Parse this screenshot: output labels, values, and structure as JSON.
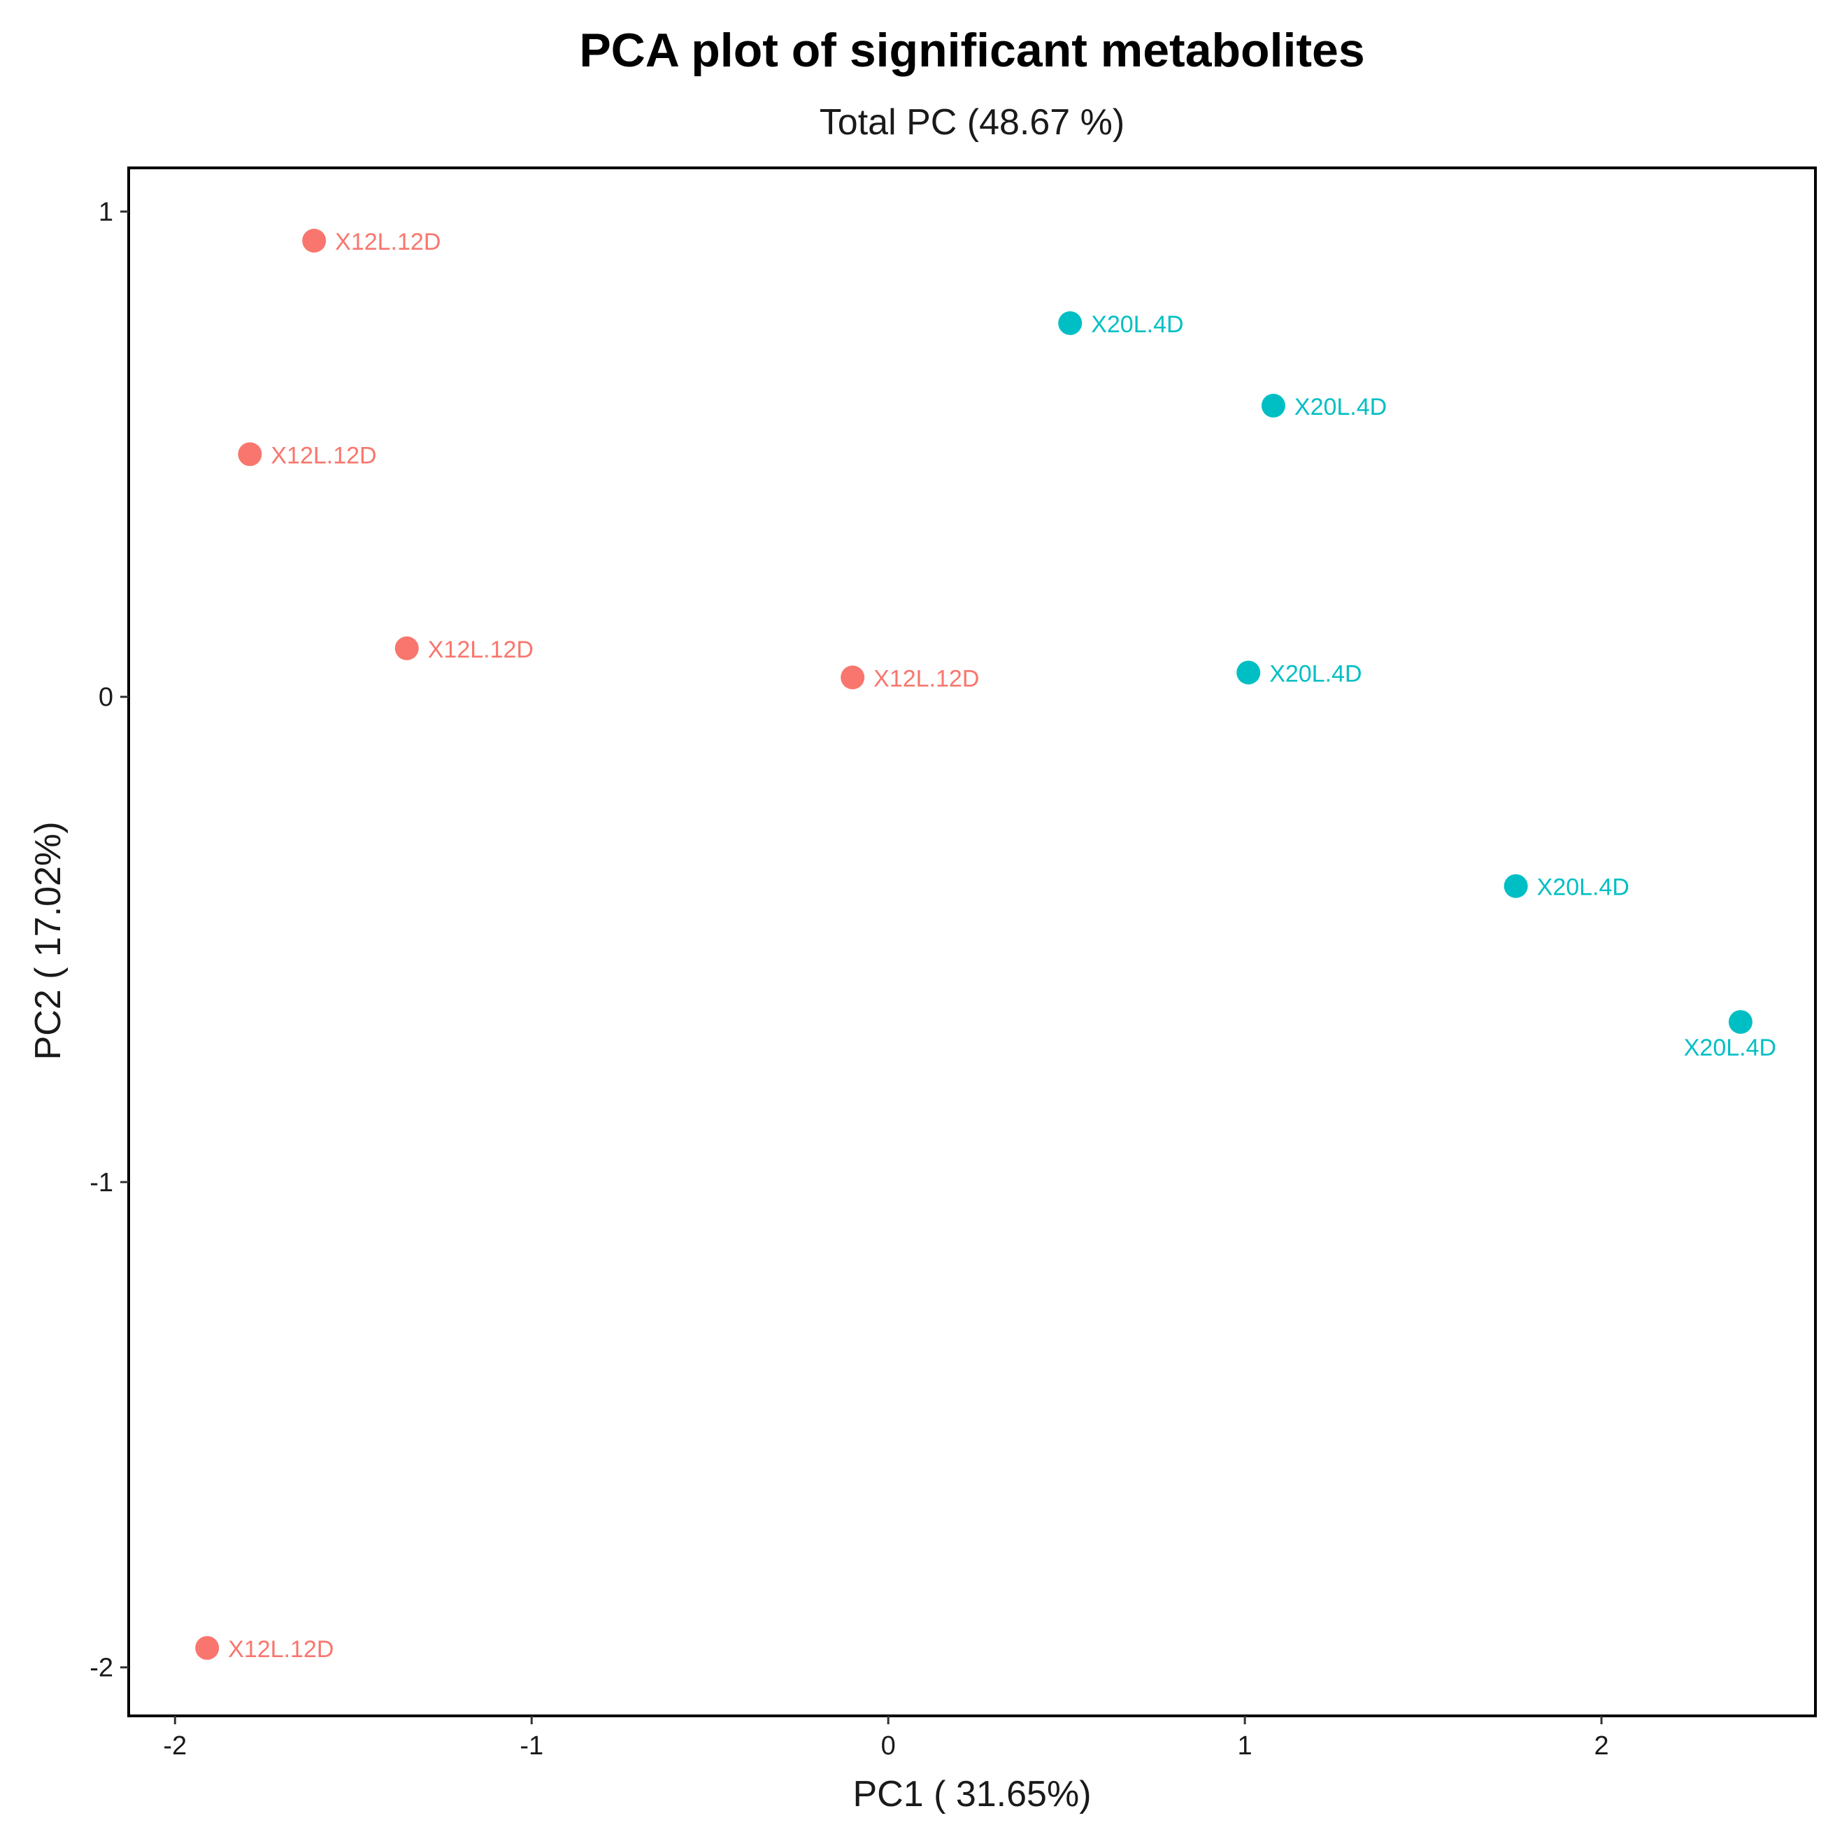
{
  "chart_data": {
    "type": "scatter",
    "title": "PCA plot of significant metabolites",
    "subtitle": "Total PC (48.67 %)",
    "xlabel": "PC1 ( 31.65%)",
    "ylabel": "PC2 ( 17.02%)",
    "xlim": [
      -2.13,
      2.6
    ],
    "ylim": [
      -2.1,
      1.09
    ],
    "x_ticks": [
      -2,
      -1,
      0,
      1,
      2
    ],
    "y_ticks": [
      1,
      0,
      -1,
      -2
    ],
    "x_tick_labels": [
      "-2",
      "-1",
      "0",
      "1",
      "2"
    ],
    "y_tick_labels": [
      "1",
      "0",
      "-1",
      "-2"
    ],
    "grid": false,
    "legend": "none",
    "series": [
      {
        "name": "X12L.12D",
        "color": "#F8766D",
        "points": [
          {
            "x": -1.61,
            "y": 0.94,
            "label": "X12L.12D"
          },
          {
            "x": -1.79,
            "y": 0.5,
            "label": "X12L.12D"
          },
          {
            "x": -1.35,
            "y": 0.1,
            "label": "X12L.12D"
          },
          {
            "x": -0.1,
            "y": 0.04,
            "label": "X12L.12D"
          },
          {
            "x": -1.91,
            "y": -1.96,
            "label": "X12L.12D"
          }
        ]
      },
      {
        "name": "X20L.4D",
        "color": "#00BFC4",
        "points": [
          {
            "x": 0.51,
            "y": 0.77,
            "label": "X20L.4D"
          },
          {
            "x": 1.08,
            "y": 0.6,
            "label": "X20L.4D"
          },
          {
            "x": 1.01,
            "y": 0.05,
            "label": "X20L.4D"
          },
          {
            "x": 1.76,
            "y": -0.39,
            "label": "X20L.4D"
          },
          {
            "x": 2.39,
            "y": -0.67,
            "label": "X20L.4D",
            "label_pos": "below"
          }
        ]
      }
    ]
  }
}
